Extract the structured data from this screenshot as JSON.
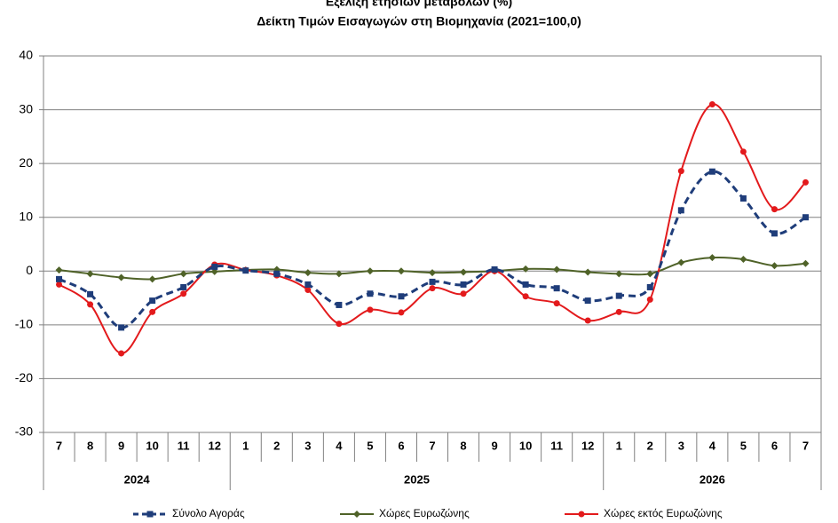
{
  "chart_data": {
    "type": "line",
    "title": "Εξέλιξη ετήσιων μεταβολών (%)",
    "subtitle": "Δείκτη Τιμών Εισαγωγών στη Βιομηχανία (2021=100,0)",
    "categories": [
      "7",
      "8",
      "9",
      "10",
      "11",
      "12",
      "1",
      "2",
      "3",
      "4",
      "5",
      "6",
      "7",
      "8",
      "9",
      "10",
      "11",
      "12",
      "1",
      "2",
      "3",
      "4",
      "5",
      "6",
      "7"
    ],
    "years": [
      {
        "label": "2024",
        "count": 6
      },
      {
        "label": "2025",
        "count": 12
      },
      {
        "label": "2026",
        "count": 7
      }
    ],
    "series": [
      {
        "name": "Σύνολο Αγοράς",
        "color": "#1f3d7a",
        "marker": "square",
        "dashed": true,
        "values": [
          -1.5,
          -4.3,
          -10.5,
          -5.5,
          -3.0,
          0.8,
          0.1,
          -0.5,
          -2.5,
          -6.3,
          -4.2,
          -4.7,
          -2.0,
          -2.5,
          0.3,
          -2.5,
          -3.2,
          -5.5,
          -4.6,
          -3.0,
          11.3,
          18.5,
          13.5,
          7.0,
          10.0
        ]
      },
      {
        "name": "Χώρες Ευρωζώνης",
        "color": "#4f6228",
        "marker": "diamond",
        "dashed": false,
        "values": [
          0.2,
          -0.5,
          -1.2,
          -1.5,
          -0.5,
          -0.1,
          0.2,
          0.3,
          -0.3,
          -0.5,
          0.0,
          0.0,
          -0.3,
          -0.2,
          0.0,
          0.4,
          0.3,
          -0.2,
          -0.5,
          -0.5,
          1.6,
          2.5,
          2.2,
          1.0,
          1.4
        ]
      },
      {
        "name": "Χώρες εκτός Ευρωζώνης",
        "color": "#e31a1c",
        "marker": "circle",
        "dashed": false,
        "values": [
          -2.5,
          -6.2,
          -15.3,
          -7.6,
          -4.2,
          1.2,
          0.2,
          -0.8,
          -3.5,
          -9.8,
          -7.2,
          -7.7,
          -3.2,
          -4.2,
          0.0,
          -4.7,
          -6.0,
          -9.2,
          -7.6,
          -5.3,
          18.6,
          31.0,
          22.2,
          11.5,
          16.5
        ]
      }
    ],
    "ylim": [
      -30,
      40
    ],
    "yticks": [
      -30,
      -20,
      -10,
      0,
      10,
      20,
      30,
      40
    ],
    "grid": true,
    "legend": "bottom"
  }
}
